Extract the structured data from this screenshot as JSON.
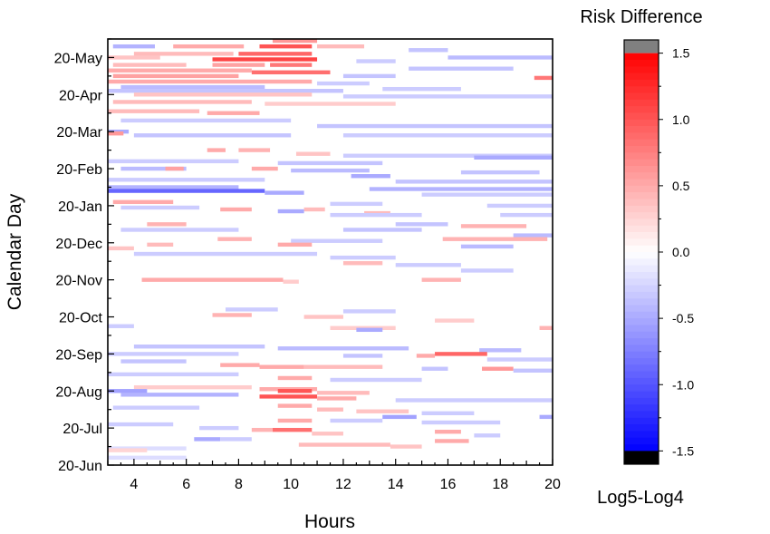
{
  "chart_data": {
    "type": "heatmap",
    "title": "",
    "xlabel": "Hours",
    "ylabel": "Calendar Day",
    "xlim": [
      3,
      20
    ],
    "x_ticks": [
      4,
      6,
      8,
      10,
      12,
      14,
      16,
      18,
      20
    ],
    "y_ticks": [
      "20-Jun",
      "20-Jul",
      "20-Aug",
      "20-Sep",
      "20-Oct",
      "20-Nov",
      "20-Dec",
      "20-Jan",
      "20-Feb",
      "20-Mar",
      "20-Apr",
      "20-May"
    ],
    "y_range_months": [
      0,
      11.5
    ],
    "colorbar": {
      "title": "Risk Difference",
      "caption": "Log5-Log4",
      "range": [
        -1.6,
        1.6
      ],
      "ticks": [
        1.5,
        1.0,
        0.5,
        0.0,
        -0.5,
        -1.0,
        -1.5
      ],
      "tick_labels": [
        "1.5",
        "1.0",
        "0.5",
        "0.0",
        "-0.5",
        "-1.0",
        "-1.5"
      ],
      "over_color": "#808080",
      "under_color": "#000000"
    },
    "colors": {
      "positive": "#ff0000",
      "negative": "#0000ff",
      "neutral": "#ffffff"
    },
    "streaks": [
      {
        "y": 11.45,
        "x0": 9.3,
        "x1": 11.0,
        "v": 0.6
      },
      {
        "y": 11.3,
        "x0": 3.2,
        "x1": 4.8,
        "v": -0.45
      },
      {
        "y": 11.3,
        "x0": 5.5,
        "x1": 8.2,
        "v": 0.5
      },
      {
        "y": 11.3,
        "x0": 8.8,
        "x1": 10.8,
        "v": 1.0
      },
      {
        "y": 11.3,
        "x0": 11.0,
        "x1": 12.8,
        "v": 0.4
      },
      {
        "y": 11.2,
        "x0": 14.5,
        "x1": 16.0,
        "v": -0.35
      },
      {
        "y": 11.1,
        "x0": 4.0,
        "x1": 7.8,
        "v": 0.4
      },
      {
        "y": 11.1,
        "x0": 8.0,
        "x1": 10.8,
        "v": 0.9
      },
      {
        "y": 11.0,
        "x0": 3.0,
        "x1": 5.0,
        "v": 0.35
      },
      {
        "y": 11.0,
        "x0": 16.0,
        "x1": 20.0,
        "v": -0.4
      },
      {
        "y": 10.95,
        "x0": 7.0,
        "x1": 11.0,
        "v": 1.1
      },
      {
        "y": 10.9,
        "x0": 12.5,
        "x1": 14.0,
        "v": -0.3
      },
      {
        "y": 10.8,
        "x0": 3.2,
        "x1": 6.0,
        "v": 0.4
      },
      {
        "y": 10.8,
        "x0": 7.0,
        "x1": 9.0,
        "v": 0.55
      },
      {
        "y": 10.8,
        "x0": 9.2,
        "x1": 10.8,
        "v": 0.8
      },
      {
        "y": 10.7,
        "x0": 14.5,
        "x1": 18.5,
        "v": -0.35
      },
      {
        "y": 10.65,
        "x0": 3.0,
        "x1": 8.5,
        "v": 0.5
      },
      {
        "y": 10.6,
        "x0": 8.5,
        "x1": 11.5,
        "v": 0.85
      },
      {
        "y": 10.5,
        "x0": 3.2,
        "x1": 8.0,
        "v": 0.55
      },
      {
        "y": 10.5,
        "x0": 12.0,
        "x1": 14.0,
        "v": -0.35
      },
      {
        "y": 10.45,
        "x0": 19.3,
        "x1": 20.0,
        "v": 0.8
      },
      {
        "y": 10.35,
        "x0": 3.0,
        "x1": 10.8,
        "v": 0.5
      },
      {
        "y": 10.3,
        "x0": 11.0,
        "x1": 13.0,
        "v": -0.3
      },
      {
        "y": 10.2,
        "x0": 3.5,
        "x1": 9.0,
        "v": -0.4
      },
      {
        "y": 10.15,
        "x0": 13.5,
        "x1": 16.5,
        "v": -0.3
      },
      {
        "y": 10.1,
        "x0": 3.0,
        "x1": 12.0,
        "v": -0.35
      },
      {
        "y": 10.0,
        "x0": 4.0,
        "x1": 10.8,
        "v": 0.35
      },
      {
        "y": 9.95,
        "x0": 12.0,
        "x1": 20.0,
        "v": -0.3
      },
      {
        "y": 9.8,
        "x0": 3.2,
        "x1": 8.5,
        "v": 0.4
      },
      {
        "y": 9.75,
        "x0": 9.0,
        "x1": 14.0,
        "v": 0.3
      },
      {
        "y": 9.55,
        "x0": 3.0,
        "x1": 6.5,
        "v": 0.4
      },
      {
        "y": 9.5,
        "x0": 6.8,
        "x1": 8.8,
        "v": 0.5
      },
      {
        "y": 9.3,
        "x0": 3.5,
        "x1": 10.0,
        "v": -0.3
      },
      {
        "y": 9.15,
        "x0": 11.0,
        "x1": 20.0,
        "v": -0.35
      },
      {
        "y": 9.0,
        "x0": 3.0,
        "x1": 3.8,
        "v": -0.5
      },
      {
        "y": 8.95,
        "x0": 3.0,
        "x1": 3.6,
        "v": 0.6
      },
      {
        "y": 8.9,
        "x0": 4.0,
        "x1": 10.0,
        "v": -0.35
      },
      {
        "y": 8.9,
        "x0": 12.0,
        "x1": 20.0,
        "v": -0.3
      },
      {
        "y": 8.5,
        "x0": 6.8,
        "x1": 7.5,
        "v": 0.5
      },
      {
        "y": 8.5,
        "x0": 8.0,
        "x1": 9.2,
        "v": 0.45
      },
      {
        "y": 8.4,
        "x0": 10.2,
        "x1": 11.5,
        "v": 0.35
      },
      {
        "y": 8.35,
        "x0": 12.0,
        "x1": 20.0,
        "v": -0.3
      },
      {
        "y": 8.3,
        "x0": 17.0,
        "x1": 20.0,
        "v": -0.5
      },
      {
        "y": 8.2,
        "x0": 3.0,
        "x1": 8.0,
        "v": -0.3
      },
      {
        "y": 8.15,
        "x0": 9.5,
        "x1": 13.5,
        "v": -0.35
      },
      {
        "y": 8.0,
        "x0": 3.5,
        "x1": 6.0,
        "v": -0.4
      },
      {
        "y": 8.0,
        "x0": 5.2,
        "x1": 5.9,
        "v": 0.55
      },
      {
        "y": 8.0,
        "x0": 8.5,
        "x1": 9.5,
        "v": 0.5
      },
      {
        "y": 7.95,
        "x0": 10.0,
        "x1": 13.0,
        "v": -0.4
      },
      {
        "y": 7.9,
        "x0": 16.5,
        "x1": 19.5,
        "v": -0.35
      },
      {
        "y": 7.8,
        "x0": 12.3,
        "x1": 13.8,
        "v": -0.5
      },
      {
        "y": 7.7,
        "x0": 3.0,
        "x1": 9.0,
        "v": -0.3
      },
      {
        "y": 7.65,
        "x0": 14.0,
        "x1": 20.0,
        "v": -0.35
      },
      {
        "y": 7.5,
        "x0": 3.0,
        "x1": 8.0,
        "v": -0.45
      },
      {
        "y": 7.45,
        "x0": 13.0,
        "x1": 20.0,
        "v": -0.45
      },
      {
        "y": 7.4,
        "x0": 3.0,
        "x1": 9.0,
        "v": -0.9
      },
      {
        "y": 7.35,
        "x0": 9.0,
        "x1": 10.5,
        "v": -0.5
      },
      {
        "y": 7.3,
        "x0": 15.0,
        "x1": 20.0,
        "v": -0.3
      },
      {
        "y": 7.1,
        "x0": 3.2,
        "x1": 5.5,
        "v": 0.5
      },
      {
        "y": 7.05,
        "x0": 11.5,
        "x1": 13.5,
        "v": -0.3
      },
      {
        "y": 7.0,
        "x0": 17.5,
        "x1": 20.0,
        "v": -0.3
      },
      {
        "y": 6.95,
        "x0": 3.5,
        "x1": 6.5,
        "v": -0.3
      },
      {
        "y": 6.9,
        "x0": 7.3,
        "x1": 8.5,
        "v": 0.5
      },
      {
        "y": 6.9,
        "x0": 10.5,
        "x1": 11.3,
        "v": 0.4
      },
      {
        "y": 6.85,
        "x0": 9.5,
        "x1": 10.5,
        "v": -0.5
      },
      {
        "y": 6.8,
        "x0": 12.8,
        "x1": 13.8,
        "v": 0.4
      },
      {
        "y": 6.75,
        "x0": 11.5,
        "x1": 15.0,
        "v": -0.3
      },
      {
        "y": 6.75,
        "x0": 18.0,
        "x1": 20.0,
        "v": -0.3
      },
      {
        "y": 6.5,
        "x0": 4.5,
        "x1": 6.0,
        "v": 0.45
      },
      {
        "y": 6.5,
        "x0": 14.0,
        "x1": 16.0,
        "v": -0.35
      },
      {
        "y": 6.45,
        "x0": 16.5,
        "x1": 19.0,
        "v": 0.45
      },
      {
        "y": 6.35,
        "x0": 3.5,
        "x1": 8.0,
        "v": -0.3
      },
      {
        "y": 6.35,
        "x0": 12.0,
        "x1": 15.0,
        "v": -0.35
      },
      {
        "y": 6.2,
        "x0": 18.5,
        "x1": 20.0,
        "v": -0.4
      },
      {
        "y": 6.1,
        "x0": 7.2,
        "x1": 8.5,
        "v": 0.45
      },
      {
        "y": 6.1,
        "x0": 15.8,
        "x1": 19.8,
        "v": 0.45
      },
      {
        "y": 6.05,
        "x0": 10.0,
        "x1": 13.5,
        "v": -0.3
      },
      {
        "y": 5.95,
        "x0": 4.5,
        "x1": 5.5,
        "v": 0.4
      },
      {
        "y": 5.95,
        "x0": 9.5,
        "x1": 10.8,
        "v": 0.5
      },
      {
        "y": 5.9,
        "x0": 16.5,
        "x1": 18.5,
        "v": -0.4
      },
      {
        "y": 5.85,
        "x0": 3.0,
        "x1": 4.0,
        "v": 0.35
      },
      {
        "y": 5.7,
        "x0": 4.0,
        "x1": 11.0,
        "v": -0.3
      },
      {
        "y": 5.6,
        "x0": 11.5,
        "x1": 14.0,
        "v": -0.3
      },
      {
        "y": 5.45,
        "x0": 12.0,
        "x1": 13.5,
        "v": 0.4
      },
      {
        "y": 5.4,
        "x0": 14.0,
        "x1": 16.5,
        "v": -0.3
      },
      {
        "y": 5.25,
        "x0": 16.5,
        "x1": 18.5,
        "v": -0.3
      },
      {
        "y": 5.0,
        "x0": 4.3,
        "x1": 9.7,
        "v": 0.5
      },
      {
        "y": 5.0,
        "x0": 15.0,
        "x1": 16.5,
        "v": 0.45
      },
      {
        "y": 4.95,
        "x0": 9.7,
        "x1": 10.3,
        "v": 0.3
      },
      {
        "y": 4.2,
        "x0": 7.5,
        "x1": 9.5,
        "v": -0.3
      },
      {
        "y": 4.15,
        "x0": 12.0,
        "x1": 14.0,
        "v": -0.3
      },
      {
        "y": 4.05,
        "x0": 7.0,
        "x1": 8.5,
        "v": 0.45
      },
      {
        "y": 4.0,
        "x0": 10.5,
        "x1": 12.0,
        "v": 0.35
      },
      {
        "y": 3.9,
        "x0": 15.5,
        "x1": 17.0,
        "v": 0.3
      },
      {
        "y": 3.75,
        "x0": 3.0,
        "x1": 4.0,
        "v": -0.3
      },
      {
        "y": 3.7,
        "x0": 11.5,
        "x1": 14.0,
        "v": 0.3
      },
      {
        "y": 3.7,
        "x0": 19.5,
        "x1": 20.0,
        "v": 0.45
      },
      {
        "y": 3.65,
        "x0": 12.5,
        "x1": 13.5,
        "v": -0.5
      },
      {
        "y": 3.2,
        "x0": 4.0,
        "x1": 9.0,
        "v": -0.35
      },
      {
        "y": 3.15,
        "x0": 9.5,
        "x1": 14.5,
        "v": -0.4
      },
      {
        "y": 3.1,
        "x0": 17.2,
        "x1": 18.8,
        "v": -0.4
      },
      {
        "y": 3.0,
        "x0": 3.0,
        "x1": 8.0,
        "v": -0.3
      },
      {
        "y": 3.0,
        "x0": 15.5,
        "x1": 17.5,
        "v": 0.9
      },
      {
        "y": 2.95,
        "x0": 14.8,
        "x1": 15.5,
        "v": 0.5
      },
      {
        "y": 2.95,
        "x0": 12.0,
        "x1": 13.5,
        "v": -0.35
      },
      {
        "y": 2.85,
        "x0": 17.5,
        "x1": 20.0,
        "v": -0.3
      },
      {
        "y": 2.8,
        "x0": 3.5,
        "x1": 6.0,
        "v": -0.35
      },
      {
        "y": 2.7,
        "x0": 7.3,
        "x1": 8.8,
        "v": 0.5
      },
      {
        "y": 2.65,
        "x0": 8.8,
        "x1": 10.5,
        "v": 0.5
      },
      {
        "y": 2.65,
        "x0": 10.5,
        "x1": 13.5,
        "v": 0.4
      },
      {
        "y": 2.6,
        "x0": 15.0,
        "x1": 16.0,
        "v": -0.35
      },
      {
        "y": 2.6,
        "x0": 17.3,
        "x1": 18.5,
        "v": 0.6
      },
      {
        "y": 2.55,
        "x0": 18.5,
        "x1": 20.0,
        "v": -0.35
      },
      {
        "y": 2.45,
        "x0": 3.0,
        "x1": 8.0,
        "v": -0.3
      },
      {
        "y": 2.35,
        "x0": 9.5,
        "x1": 10.8,
        "v": 0.5
      },
      {
        "y": 2.3,
        "x0": 11.5,
        "x1": 15.0,
        "v": -0.3
      },
      {
        "y": 2.1,
        "x0": 4.0,
        "x1": 8.5,
        "v": 0.3
      },
      {
        "y": 2.05,
        "x0": 8.8,
        "x1": 11.0,
        "v": 0.5
      },
      {
        "y": 2.0,
        "x0": 3.0,
        "x1": 4.5,
        "v": -0.55
      },
      {
        "y": 2.0,
        "x0": 9.5,
        "x1": 10.8,
        "v": 1.0
      },
      {
        "y": 1.95,
        "x0": 11.0,
        "x1": 13.0,
        "v": 0.4
      },
      {
        "y": 1.9,
        "x0": 3.5,
        "x1": 8.0,
        "v": -0.45
      },
      {
        "y": 1.85,
        "x0": 8.8,
        "x1": 11.0,
        "v": 1.0
      },
      {
        "y": 1.8,
        "x0": 11.0,
        "x1": 12.5,
        "v": 0.5
      },
      {
        "y": 1.75,
        "x0": 14.0,
        "x1": 20.0,
        "v": -0.3
      },
      {
        "y": 1.6,
        "x0": 9.5,
        "x1": 10.8,
        "v": 0.5
      },
      {
        "y": 1.55,
        "x0": 3.2,
        "x1": 6.5,
        "v": -0.3
      },
      {
        "y": 1.5,
        "x0": 11.0,
        "x1": 12.0,
        "v": 0.4
      },
      {
        "y": 1.45,
        "x0": 12.5,
        "x1": 14.5,
        "v": 0.35
      },
      {
        "y": 1.4,
        "x0": 15.0,
        "x1": 17.0,
        "v": -0.3
      },
      {
        "y": 1.3,
        "x0": 13.5,
        "x1": 14.8,
        "v": -0.55
      },
      {
        "y": 1.3,
        "x0": 19.5,
        "x1": 20.0,
        "v": -0.5
      },
      {
        "y": 1.2,
        "x0": 9.5,
        "x1": 10.8,
        "v": 0.5
      },
      {
        "y": 1.2,
        "x0": 11.5,
        "x1": 13.5,
        "v": -0.3
      },
      {
        "y": 1.15,
        "x0": 15.0,
        "x1": 18.0,
        "v": -0.3
      },
      {
        "y": 1.1,
        "x0": 3.0,
        "x1": 5.5,
        "v": -0.3
      },
      {
        "y": 1.0,
        "x0": 6.5,
        "x1": 8.0,
        "v": -0.3
      },
      {
        "y": 0.95,
        "x0": 9.3,
        "x1": 10.8,
        "v": 0.85
      },
      {
        "y": 0.95,
        "x0": 8.5,
        "x1": 9.3,
        "v": 0.45
      },
      {
        "y": 0.9,
        "x0": 15.5,
        "x1": 16.5,
        "v": 0.5
      },
      {
        "y": 0.85,
        "x0": 10.8,
        "x1": 12.0,
        "v": 0.35
      },
      {
        "y": 0.8,
        "x0": 17.0,
        "x1": 18.0,
        "v": -0.3
      },
      {
        "y": 0.7,
        "x0": 6.3,
        "x1": 7.3,
        "v": -0.5
      },
      {
        "y": 0.7,
        "x0": 7.3,
        "x1": 8.5,
        "v": -0.3
      },
      {
        "y": 0.65,
        "x0": 15.5,
        "x1": 16.8,
        "v": 0.5
      },
      {
        "y": 0.55,
        "x0": 10.3,
        "x1": 11.5,
        "v": 0.4
      },
      {
        "y": 0.55,
        "x0": 11.5,
        "x1": 13.8,
        "v": 0.4
      },
      {
        "y": 0.5,
        "x0": 13.8,
        "x1": 15.0,
        "v": 0.35
      },
      {
        "y": 0.45,
        "x0": 3.0,
        "x1": 6.0,
        "v": -0.2
      },
      {
        "y": 0.4,
        "x0": 3.0,
        "x1": 4.5,
        "v": 0.25
      },
      {
        "y": 0.2,
        "x0": 3.0,
        "x1": 6.0,
        "v": -0.2
      }
    ]
  }
}
